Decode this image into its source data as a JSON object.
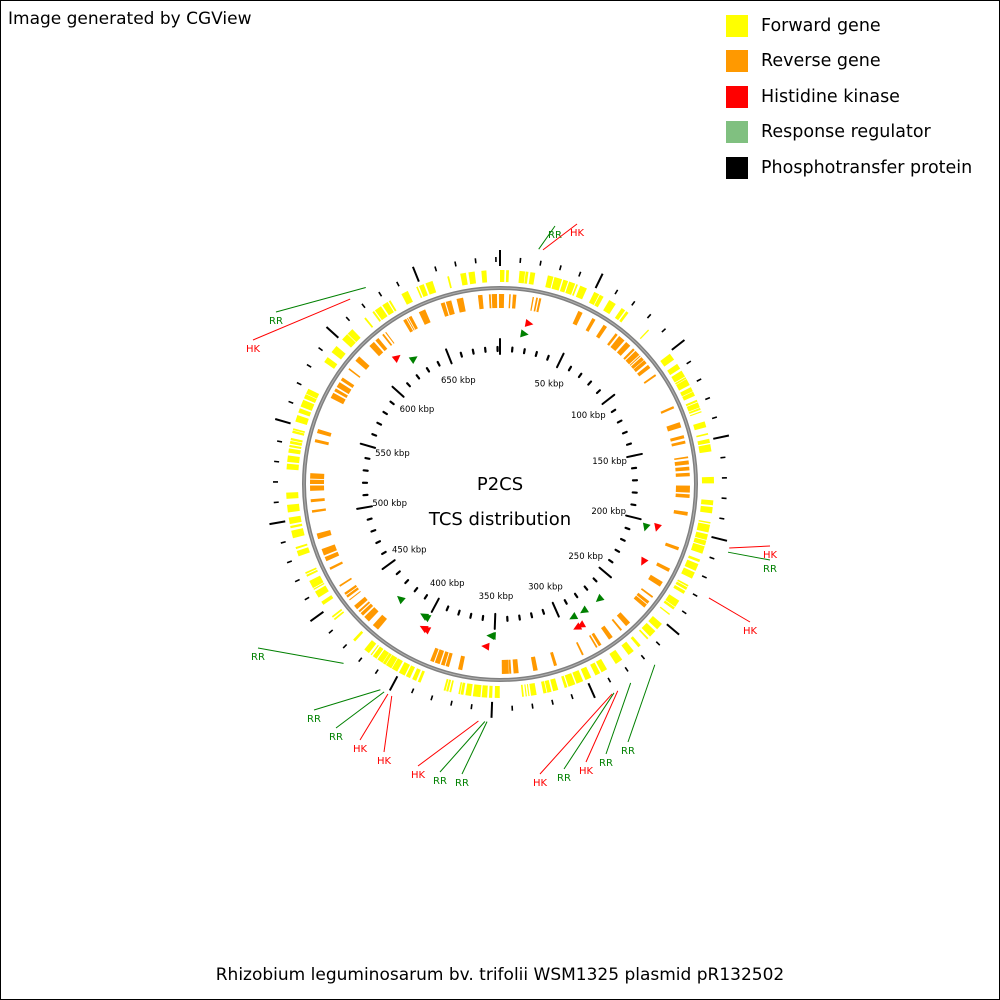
{
  "credit": "Image generated by CGView",
  "legend": [
    {
      "label": "Forward gene",
      "color": "#ffff00"
    },
    {
      "label": "Reverse gene",
      "color": "#ff9900"
    },
    {
      "label": "Histidine kinase",
      "color": "#ff0000"
    },
    {
      "label": "Response regulator",
      "color": "#80c080"
    },
    {
      "label": "Phosphotransfer protein",
      "color": "#000000"
    }
  ],
  "map": {
    "title": "P2CS",
    "subtitle": "TCS distribution",
    "backbone_color": "#808080",
    "genome_length_kbp": 692,
    "tick_labels": [
      "50 kbp",
      "100 kbp",
      "150 kbp",
      "200 kbp",
      "250 kbp",
      "300 kbp",
      "350 kbp",
      "400 kbp",
      "450 kbp",
      "500 kbp",
      "550 kbp",
      "600 kbp",
      "650 kbp"
    ],
    "tick_positions_kbp": [
      50,
      100,
      150,
      200,
      250,
      300,
      350,
      400,
      450,
      500,
      550,
      600,
      650
    ],
    "hk_color": "#ff0000",
    "rr_color": "#008000",
    "features": [
      {
        "type": "RR",
        "position_kbp": 18
      },
      {
        "type": "HK",
        "position_kbp": 20
      },
      {
        "type": "HK",
        "position_kbp": 203
      },
      {
        "type": "RR",
        "position_kbp": 205
      },
      {
        "type": "HK",
        "position_kbp": 228
      },
      {
        "type": "RR",
        "position_kbp": 268
      },
      {
        "type": "RR",
        "position_kbp": 282
      },
      {
        "type": "HK",
        "position_kbp": 289
      },
      {
        "type": "RR",
        "position_kbp": 291
      },
      {
        "type": "HK",
        "position_kbp": 292
      },
      {
        "type": "RR",
        "position_kbp": 352
      },
      {
        "type": "RR",
        "position_kbp": 353
      },
      {
        "type": "HK",
        "position_kbp": 356
      },
      {
        "type": "HK",
        "position_kbp": 398
      },
      {
        "type": "HK",
        "position_kbp": 400
      },
      {
        "type": "RR",
        "position_kbp": 402
      },
      {
        "type": "RR",
        "position_kbp": 404
      },
      {
        "type": "RR",
        "position_kbp": 425
      },
      {
        "type": "HK",
        "position_kbp": 617
      },
      {
        "type": "RR",
        "position_kbp": 626
      }
    ],
    "feature_labels": [
      {
        "text": "RR",
        "type": "RR"
      },
      {
        "text": "HK",
        "type": "HK"
      },
      {
        "text": "HK",
        "type": "HK"
      },
      {
        "text": "RR",
        "type": "RR"
      },
      {
        "text": "HK",
        "type": "HK"
      },
      {
        "text": "RR",
        "type": "RR"
      },
      {
        "text": "RR",
        "type": "RR"
      },
      {
        "text": "HK",
        "type": "HK"
      },
      {
        "text": "RR",
        "type": "RR"
      },
      {
        "text": "HK",
        "type": "HK"
      },
      {
        "text": "RR",
        "type": "RR"
      },
      {
        "text": "RR",
        "type": "RR"
      },
      {
        "text": "HK",
        "type": "HK"
      },
      {
        "text": "HK",
        "type": "HK"
      },
      {
        "text": "HK",
        "type": "HK"
      },
      {
        "text": "RR",
        "type": "RR"
      },
      {
        "text": "RR",
        "type": "RR"
      },
      {
        "text": "RR",
        "type": "RR"
      },
      {
        "text": "HK",
        "type": "HK"
      },
      {
        "text": "RR",
        "type": "RR"
      }
    ]
  },
  "footer": "Rhizobium leguminosarum bv. trifolii WSM1325 plasmid pR132502"
}
